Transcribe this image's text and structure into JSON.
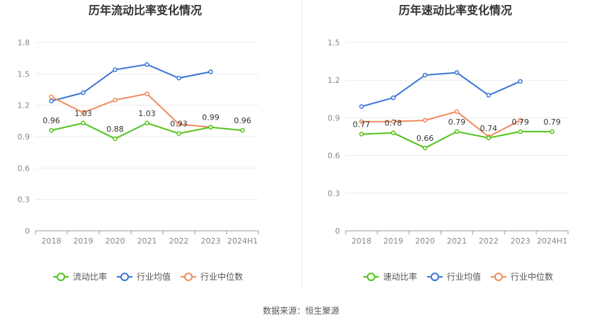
{
  "source_text": "数据来源：恒生聚源",
  "chart_data": [
    {
      "type": "line",
      "title": "历年流动比率变化情况",
      "categories": [
        "2018",
        "2019",
        "2020",
        "2021",
        "2022",
        "2023",
        "2024H1"
      ],
      "y_ticks": [
        "0",
        "0.3",
        "0.6",
        "0.9",
        "1.2",
        "1.5",
        "1.8"
      ],
      "ylim": [
        0,
        1.8
      ],
      "grid": true,
      "legend_position": "bottom",
      "series": [
        {
          "name": "流动比率",
          "color": "#52c41a",
          "values": [
            0.96,
            1.03,
            0.88,
            1.03,
            0.93,
            0.99,
            0.96
          ],
          "labels": [
            "0.96",
            "1.03",
            "0.88",
            "1.03",
            "0.93",
            "0.99",
            "0.96"
          ]
        },
        {
          "name": "行业均值",
          "color": "#3a75d6",
          "values": [
            1.24,
            1.32,
            1.54,
            1.59,
            1.46,
            1.52,
            null
          ]
        },
        {
          "name": "行业中位数",
          "color": "#f08a5d",
          "values": [
            1.28,
            1.13,
            1.25,
            1.31,
            1.02,
            0.99,
            null
          ]
        }
      ]
    },
    {
      "type": "line",
      "title": "历年速动比率变化情况",
      "categories": [
        "2018",
        "2019",
        "2020",
        "2021",
        "2022",
        "2023",
        "2024H1"
      ],
      "y_ticks": [
        "0",
        "0.3",
        "0.6",
        "0.9",
        "1.2",
        "1.5"
      ],
      "ylim": [
        0,
        1.5
      ],
      "grid": true,
      "legend_position": "bottom",
      "series": [
        {
          "name": "速动比率",
          "color": "#52c41a",
          "values": [
            0.77,
            0.78,
            0.66,
            0.79,
            0.74,
            0.79,
            0.79
          ],
          "labels": [
            "0.77",
            "0.78",
            "0.66",
            "0.79",
            "0.74",
            "0.79",
            "0.79"
          ]
        },
        {
          "name": "行业均值",
          "color": "#3a75d6",
          "values": [
            0.99,
            1.06,
            1.24,
            1.26,
            1.08,
            1.19,
            null
          ]
        },
        {
          "name": "行业中位数",
          "color": "#f08a5d",
          "values": [
            0.87,
            0.87,
            0.88,
            0.95,
            0.75,
            0.88,
            null
          ]
        }
      ]
    }
  ]
}
